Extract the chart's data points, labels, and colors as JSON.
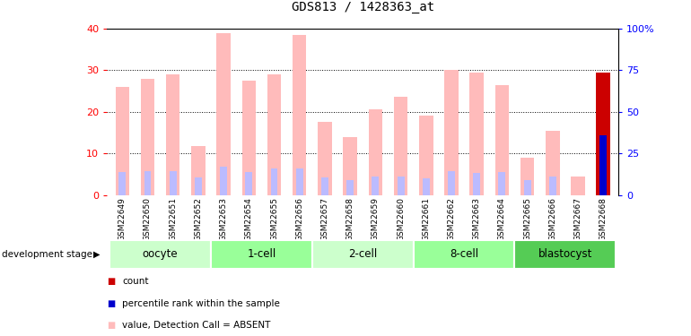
{
  "title": "GDS813 / 1428363_at",
  "samples": [
    "GSM22649",
    "GSM22650",
    "GSM22651",
    "GSM22652",
    "GSM22653",
    "GSM22654",
    "GSM22655",
    "GSM22656",
    "GSM22657",
    "GSM22658",
    "GSM22659",
    "GSM22660",
    "GSM22661",
    "GSM22662",
    "GSM22663",
    "GSM22664",
    "GSM22665",
    "GSM22666",
    "GSM22667",
    "GSM22668"
  ],
  "value_absent": [
    26,
    28,
    29,
    11.8,
    39,
    27.5,
    29,
    38.5,
    17.5,
    13.8,
    20.5,
    23.5,
    19,
    30,
    29.5,
    26.5,
    9,
    15.5,
    4.5,
    29.5
  ],
  "rank_absent": [
    13.5,
    14.5,
    14.5,
    10.5,
    17,
    13.8,
    16,
    16,
    10.3,
    9,
    10.8,
    11,
    10,
    14.5,
    13,
    14,
    9,
    10.8,
    null,
    null
  ],
  "count_value": 29.5,
  "count_rank": 36,
  "stages": [
    {
      "label": "oocyte",
      "start": 0,
      "end": 3,
      "color": "#ccffcc"
    },
    {
      "label": "1-cell",
      "start": 4,
      "end": 7,
      "color": "#99ff99"
    },
    {
      "label": "2-cell",
      "start": 8,
      "end": 11,
      "color": "#ccffcc"
    },
    {
      "label": "8-cell",
      "start": 12,
      "end": 15,
      "color": "#99ff99"
    },
    {
      "label": "blastocyst",
      "start": 16,
      "end": 19,
      "color": "#55cc55"
    }
  ],
  "ylim_left": [
    0,
    40
  ],
  "ylim_right": [
    0,
    100
  ],
  "yticks_left": [
    0,
    10,
    20,
    30,
    40
  ],
  "yticks_right": [
    0,
    25,
    50,
    75,
    100
  ],
  "color_value_absent": "#ffbbbb",
  "color_rank_absent": "#bbbbff",
  "color_count": "#cc0000",
  "color_percentile": "#0000cc",
  "background_header": "#d8d8d8"
}
